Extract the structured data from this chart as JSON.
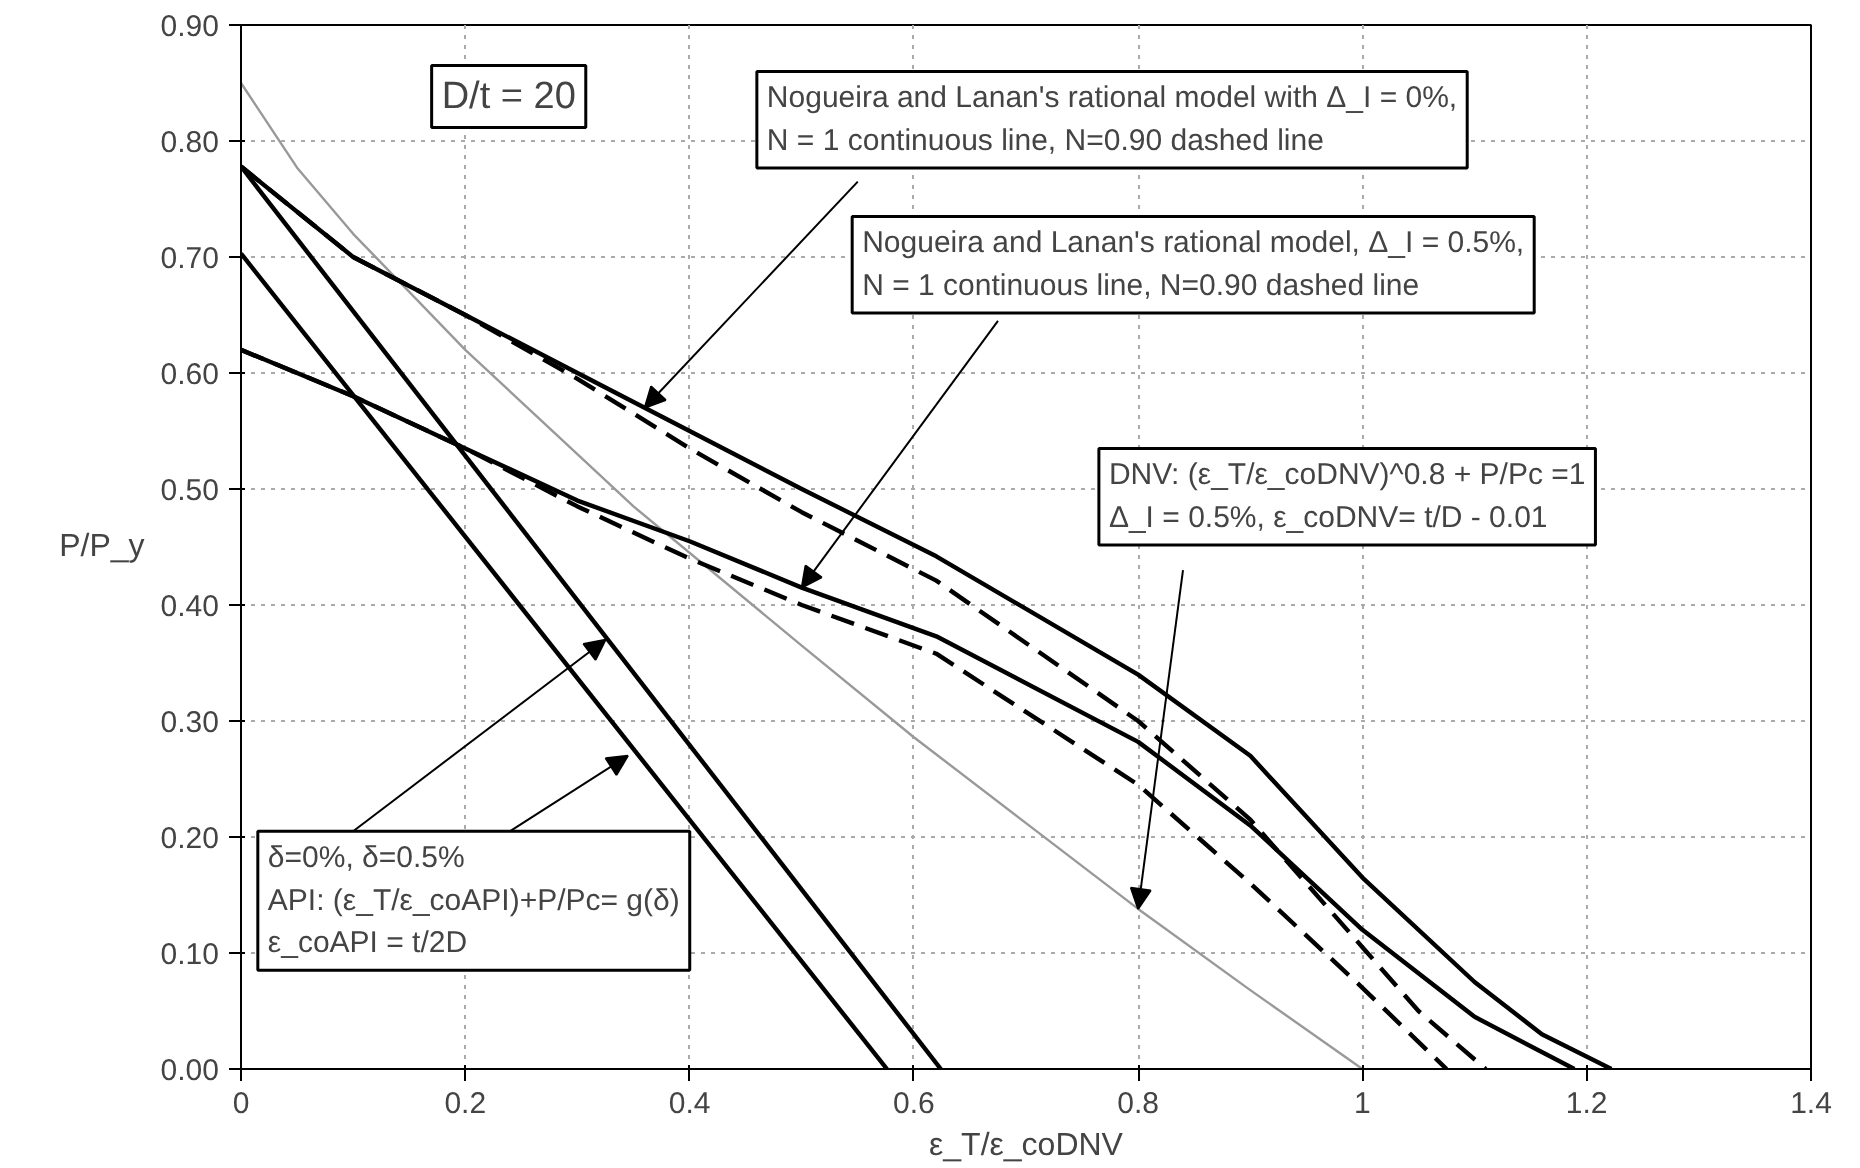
{
  "chart_data": {
    "type": "line",
    "xlabel": "ε_T/ε_coDNV",
    "ylabel": "P/P_y",
    "xlim": [
      0,
      1.4
    ],
    "xticks": [
      0,
      0.2,
      0.4,
      0.6,
      0.8,
      1,
      1.2,
      1.4
    ],
    "ylim": [
      0,
      0.9
    ],
    "yticks": [
      {
        "value": 0,
        "label": "0.00"
      },
      {
        "value": 0.1,
        "label": "0.10"
      },
      {
        "value": 0.2,
        "label": "0.20"
      },
      {
        "value": 0.3,
        "label": "0.30"
      },
      {
        "value": 0.4,
        "label": "0.40"
      },
      {
        "value": 0.5,
        "label": "0.50"
      },
      {
        "value": 0.6,
        "label": "0.60"
      },
      {
        "value": 0.7,
        "label": "0.70"
      },
      {
        "value": 0.8,
        "label": "0.80"
      },
      {
        "value": 0.9,
        "label": "0.90"
      }
    ],
    "grid": true,
    "marker": "none",
    "series": [
      {
        "color": "#000000",
        "line_style": "solid",
        "x": [
          0,
          0.576
        ],
        "values": [
          0.703,
          0
        ]
      },
      {
        "color": "#000000",
        "line_style": "solid",
        "x": [
          0,
          0.624
        ],
        "values": [
          0.778,
          0
        ]
      },
      {
        "color": "#999999",
        "line_style": "solid",
        "x": [
          0,
          0.05,
          0.1,
          0.2,
          0.35,
          0.5,
          0.6,
          0.7,
          0.8,
          0.9,
          1.0
        ],
        "values": [
          0.85,
          0.777,
          0.72,
          0.62,
          0.485,
          0.365,
          0.286,
          0.212,
          0.138,
          0.068,
          0
        ]
      },
      {
        "color": "#000000",
        "line_style": "solid",
        "x": [
          0,
          0.1,
          0.2,
          0.3,
          0.4,
          0.5,
          0.62,
          0.8,
          0.9,
          1.0,
          1.1,
          1.16,
          1.222
        ],
        "values": [
          0.778,
          0.7,
          0.65,
          0.6,
          0.55,
          0.5,
          0.442,
          0.34,
          0.27,
          0.165,
          0.075,
          0.03,
          0
        ]
      },
      {
        "color": "#000000",
        "line_style": "dashed",
        "x": [
          0,
          0.1,
          0.2,
          0.3,
          0.4,
          0.5,
          0.62,
          0.8,
          0.9,
          0.95,
          1.0,
          1.05,
          1.11
        ],
        "values": [
          0.778,
          0.7,
          0.65,
          0.595,
          0.535,
          0.48,
          0.421,
          0.3,
          0.215,
          0.16,
          0.105,
          0.05,
          0
        ]
      },
      {
        "color": "#000000",
        "line_style": "solid",
        "x": [
          0,
          0.1,
          0.2,
          0.3,
          0.4,
          0.5,
          0.62,
          0.8,
          0.9,
          0.95,
          1.0,
          1.1,
          1.189
        ],
        "values": [
          0.62,
          0.58,
          0.535,
          0.49,
          0.455,
          0.415,
          0.373,
          0.282,
          0.21,
          0.165,
          0.12,
          0.045,
          0
        ]
      },
      {
        "color": "#000000",
        "line_style": "dashed",
        "x": [
          0,
          0.1,
          0.2,
          0.3,
          0.4,
          0.5,
          0.62,
          0.8,
          0.9,
          1.0,
          1.075
        ],
        "values": [
          0.62,
          0.58,
          0.535,
          0.485,
          0.44,
          0.4,
          0.358,
          0.245,
          0.16,
          0.07,
          0
        ]
      }
    ],
    "annotations": [
      "D/t = 20",
      {
        "text": "Nogueira and Lanan's rational model with Δ_I = 0%,\nN = 1 continuous line, N=0.90 dashed line",
        "x": 0.36,
        "y": 0.57
      },
      {
        "text": "Nogueira and Lanan's rational model, Δ_I = 0.5%,\nN = 1 continuous line, N=0.90 dashed line",
        "x": 0.5,
        "y": 0.415
      },
      {
        "text": "DNV: (ε_T/ε_coDNV)^0.8 + P/Pc =1\nΔ_I = 0.5%, ε_coDNV= t/D - 0.01",
        "x": 0.8,
        "y": 0.138
      },
      {
        "text": "δ=0%, δ=0.5%\nAPI: (ε_T/ε_coAPI)+P/Pc= g(δ)\nε_coAPI = t/2D",
        "x": 0.325,
        "y": 0.37
      }
    ]
  }
}
